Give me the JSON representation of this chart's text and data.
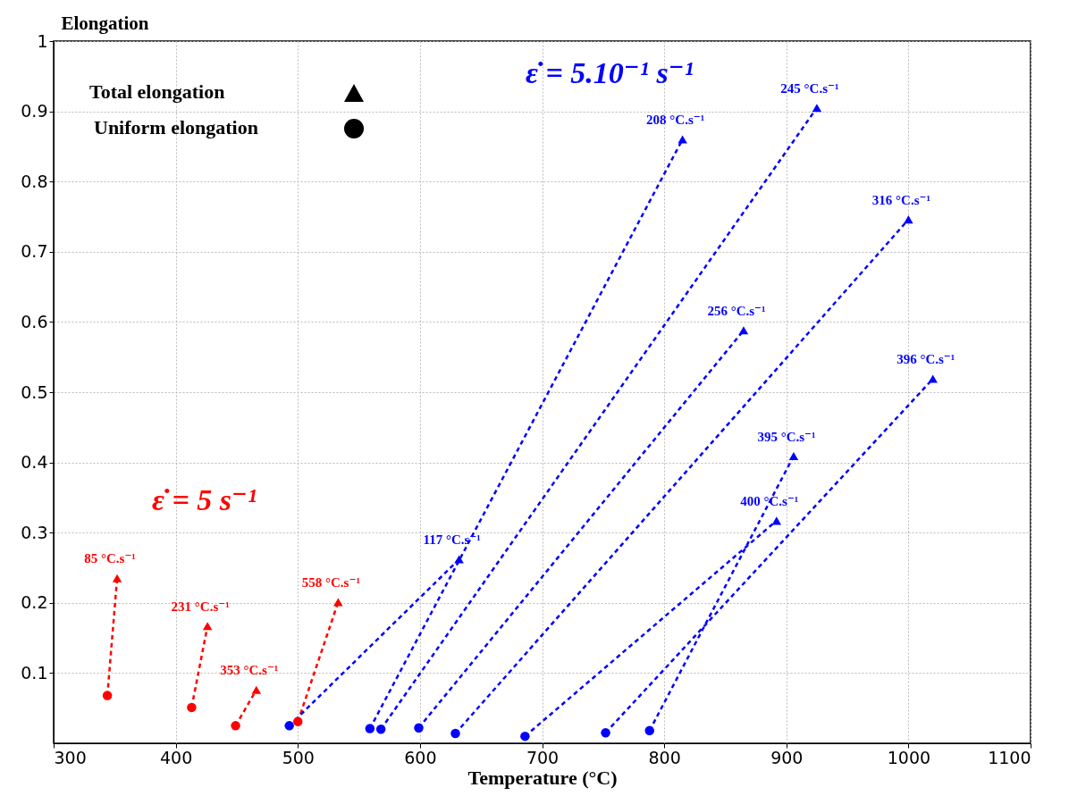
{
  "chart_data": {
    "type": "line",
    "xlabel": "Temperature (°C)",
    "ylabel": "Elongation",
    "xlim": [
      300,
      1100
    ],
    "xticks": [
      300,
      400,
      500,
      600,
      700,
      800,
      900,
      1000,
      1100
    ],
    "ylim": [
      0,
      1
    ],
    "yticks": [
      0.1,
      0.2,
      0.3,
      0.4,
      0.5,
      0.6,
      0.7,
      0.8,
      0.9,
      1
    ],
    "grid": true,
    "line_style": "dashed",
    "series": [
      {
        "name": "ε̇ =  5 s⁻¹",
        "type": "line",
        "color": "#ff0000",
        "x": [
          344,
          352,
          null,
          413,
          426,
          null,
          449,
          466,
          null,
          500,
          533
        ],
        "values": [
          0.068,
          0.235,
          null,
          0.051,
          0.167,
          null,
          0.025,
          0.076,
          null,
          0.031,
          0.201
        ]
      },
      {
        "name": "ε̇ =  5.10⁻¹ s⁻¹",
        "type": "line",
        "color": "#0000ff",
        "x": [
          493,
          632,
          null,
          559,
          815,
          null,
          568,
          925,
          null,
          599,
          865,
          null,
          629,
          1000,
          null,
          686,
          892,
          null,
          752,
          1020,
          null,
          788,
          906
        ],
        "values": [
          0.025,
          0.262,
          null,
          0.021,
          0.86,
          null,
          0.02,
          0.905,
          null,
          0.022,
          0.588,
          null,
          0.014,
          0.746,
          null,
          0.01,
          0.317,
          null,
          0.015,
          0.519,
          null,
          0.018,
          0.409
        ]
      },
      {
        "type": "scatter",
        "marker": "triangle",
        "x": [
          352,
          426,
          466,
          533,
          632,
          815,
          925,
          865,
          1000,
          892,
          1020,
          906
        ],
        "values": [
          0.235,
          0.167,
          0.076,
          0.201,
          0.262,
          0.86,
          0.905,
          0.588,
          0.746,
          0.317,
          0.519,
          0.409
        ],
        "colors": [
          "#ff0000",
          "#ff0000",
          "#ff0000",
          "#ff0000",
          "#0000ff",
          "#0000ff",
          "#0000ff",
          "#0000ff",
          "#0000ff",
          "#0000ff",
          "#0000ff",
          "#0000ff"
        ]
      },
      {
        "type": "scatter",
        "marker": "circle",
        "x": [
          344,
          413,
          449,
          500,
          493,
          559,
          568,
          599,
          629,
          686,
          752,
          788
        ],
        "values": [
          0.068,
          0.051,
          0.025,
          0.031,
          0.025,
          0.021,
          0.02,
          0.022,
          0.014,
          0.01,
          0.015,
          0.018
        ],
        "colors": [
          "#ff0000",
          "#ff0000",
          "#ff0000",
          "#ff0000",
          "#0000ff",
          "#0000ff",
          "#0000ff",
          "#0000ff",
          "#0000ff",
          "#0000ff",
          "#0000ff",
          "#0000ff"
        ]
      }
    ],
    "annotations": [
      "Total elongation",
      "Uniform elongation",
      {
        "text": "85 °C.s⁻¹",
        "x": 352,
        "y": 0.235
      },
      {
        "text": "231 °C.s⁻¹",
        "x": 426,
        "y": 0.167
      },
      {
        "text": "353 °C.s⁻¹",
        "x": 466,
        "y": 0.076
      },
      {
        "text": "558 °C.s⁻¹",
        "x": 533,
        "y": 0.201
      },
      {
        "text": "117 °C.s⁻¹",
        "x": 632,
        "y": 0.262
      },
      {
        "text": "208 °C.s⁻¹",
        "x": 815,
        "y": 0.86
      },
      {
        "text": "245 °C.s⁻¹",
        "x": 925,
        "y": 0.905
      },
      {
        "text": "256 °C.s⁻¹",
        "x": 865,
        "y": 0.588
      },
      {
        "text": "316 °C.s⁻¹",
        "x": 1000,
        "y": 0.746
      },
      {
        "text": "400 °C.s⁻¹",
        "x": 892,
        "y": 0.317
      },
      {
        "text": "396 °C.s⁻¹",
        "x": 1020,
        "y": 0.519
      },
      {
        "text": "395 °C.s⁻¹",
        "x": 906,
        "y": 0.409
      }
    ]
  }
}
